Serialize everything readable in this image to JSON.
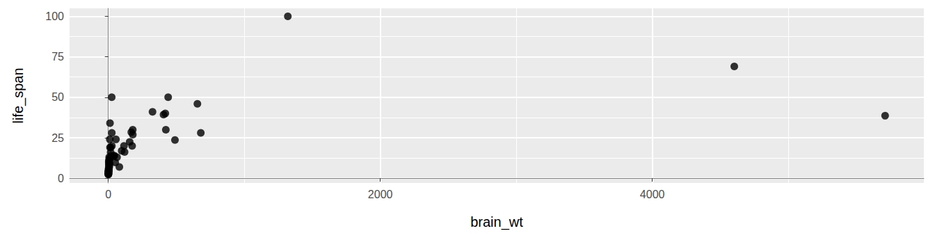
{
  "chart_data": {
    "type": "scatter",
    "x_label": "brain_wt",
    "y_label": "life_span",
    "color": "#000000",
    "marker": "circle",
    "grid": true,
    "x": [
      5712,
      4603,
      1320,
      680,
      655,
      490,
      440,
      423,
      419,
      406,
      325,
      180,
      179.5,
      175,
      169,
      157,
      119.5,
      115,
      98.2,
      56,
      81,
      50.4,
      44.5,
      25.6,
      25,
      39.2,
      12.3,
      17.5,
      10.8,
      6.3,
      11.4,
      4.2,
      3.5,
      6.6,
      5.5,
      2.4,
      3,
      1.9,
      1.9,
      0.3,
      0.4,
      0.14,
      0.25,
      1,
      12.5,
      8.1,
      17,
      21,
      5,
      2.6,
      26,
      0.75,
      3.9,
      4,
      10,
      1.2,
      64
    ],
    "y": [
      38.6,
      69,
      100,
      28,
      46,
      23.6,
      50,
      30,
      40,
      39.3,
      41,
      27,
      30,
      20,
      28.5,
      22.4,
      16.2,
      20,
      17,
      24,
      7,
      9.8,
      14,
      28,
      50,
      13.7,
      34,
      19,
      24,
      13,
      12,
      9,
      10,
      7,
      7.6,
      6,
      4.5,
      4.7,
      3,
      2.3,
      2.7,
      2.6,
      3.2,
      4.5,
      19,
      12,
      16,
      14,
      8,
      5,
      20,
      3.5,
      11,
      6,
      9,
      3.8,
      13
    ],
    "xlim": [
      -285,
      5997
    ],
    "ylim": [
      -2.9,
      104.9
    ],
    "xticks": [
      0,
      2000,
      4000
    ],
    "yticks": [
      0,
      25,
      50,
      75,
      100
    ]
  }
}
